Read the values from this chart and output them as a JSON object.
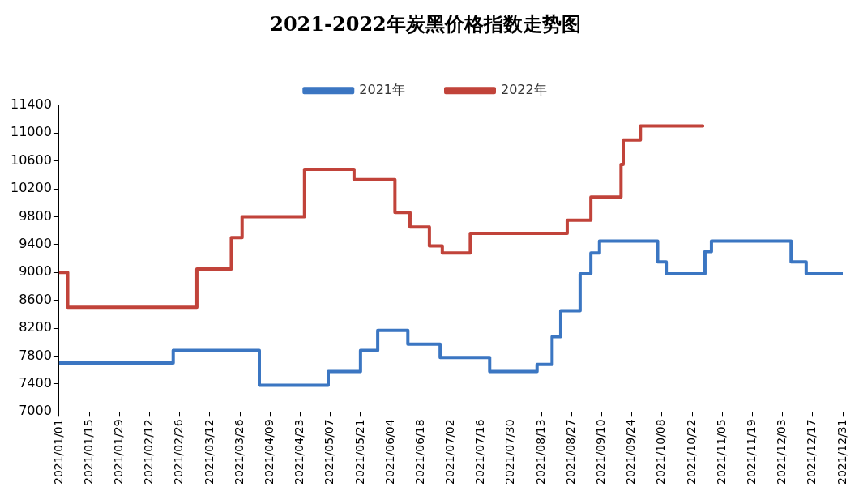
{
  "chart_data": {
    "type": "step",
    "title": "2021-2022年炭黑价格指数走势图",
    "legend": "top",
    "grid": false,
    "xlim": [
      "2021-01-01",
      "2021-12-31"
    ],
    "xticks": [
      {
        "value": "2021-01-01",
        "label": "2021/01/01"
      },
      {
        "value": "2021-01-15",
        "label": "2021/01/15"
      },
      {
        "value": "2021-01-29",
        "label": "2021/01/29"
      },
      {
        "value": "2021-02-12",
        "label": "2021/02/12"
      },
      {
        "value": "2021-02-26",
        "label": "2021/02/26"
      },
      {
        "value": "2021-03-12",
        "label": "2021/03/12"
      },
      {
        "value": "2021-03-26",
        "label": "2021/03/26"
      },
      {
        "value": "2021-04-09",
        "label": "2021/04/09"
      },
      {
        "value": "2021-04-23",
        "label": "2021/04/23"
      },
      {
        "value": "2021-05-07",
        "label": "2021/05/07"
      },
      {
        "value": "2021-05-21",
        "label": "2021/05/21"
      },
      {
        "value": "2021-06-04",
        "label": "2021/06/04"
      },
      {
        "value": "2021-06-18",
        "label": "2021/06/18"
      },
      {
        "value": "2021-07-02",
        "label": "2021/07/02"
      },
      {
        "value": "2021-07-16",
        "label": "2021/07/16"
      },
      {
        "value": "2021-07-30",
        "label": "2021/07/30"
      },
      {
        "value": "2021-08-13",
        "label": "2021/08/13"
      },
      {
        "value": "2021-08-27",
        "label": "2021/08/27"
      },
      {
        "value": "2021-09-10",
        "label": "2021/09/10"
      },
      {
        "value": "2021-09-24",
        "label": "2021/09/24"
      },
      {
        "value": "2021-10-08",
        "label": "2021/10/08"
      },
      {
        "value": "2021-10-22",
        "label": "2021/10/22"
      },
      {
        "value": "2021-11-05",
        "label": "2021/11/05"
      },
      {
        "value": "2021-11-19",
        "label": "2021/11/19"
      },
      {
        "value": "2021-12-03",
        "label": "2021/12/03"
      },
      {
        "value": "2021-12-17",
        "label": "2021/12/17"
      },
      {
        "value": "2021-12-31",
        "label": "2021/12/31"
      }
    ],
    "ylim": [
      7000,
      11400
    ],
    "yticks": [
      7000,
      7400,
      7800,
      8200,
      8600,
      9000,
      9400,
      9800,
      10200,
      10600,
      11000,
      11400
    ],
    "series": [
      {
        "name": "2021年",
        "color": "#3b76c2",
        "x": [
          "2021-01-01",
          "2021-02-23",
          "2021-04-04",
          "2021-05-06",
          "2021-05-21",
          "2021-05-29",
          "2021-06-12",
          "2021-06-27",
          "2021-07-20",
          "2021-08-11",
          "2021-08-18",
          "2021-08-22",
          "2021-08-31",
          "2021-09-05",
          "2021-09-09",
          "2021-10-06",
          "2021-10-10",
          "2021-10-28",
          "2021-10-31",
          "2021-12-07",
          "2021-12-14",
          "2021-12-31"
        ],
        "values": [
          7700,
          7880,
          7380,
          7580,
          7880,
          8170,
          7970,
          7780,
          7580,
          7680,
          8080,
          8450,
          8980,
          9280,
          9450,
          9150,
          8980,
          9300,
          9450,
          9150,
          8980,
          8980
        ]
      },
      {
        "name": "2022年",
        "color": "#c1433a",
        "x": [
          "2021-01-01",
          "2021-01-05",
          "2021-03-06",
          "2021-03-22",
          "2021-03-27",
          "2021-04-25",
          "2021-05-18",
          "2021-06-06",
          "2021-06-13",
          "2021-06-22",
          "2021-06-28",
          "2021-07-11",
          "2021-08-25",
          "2021-09-05",
          "2021-09-19",
          "2021-09-20",
          "2021-09-28",
          "2021-10-27"
        ],
        "values": [
          9000,
          8500,
          9050,
          9500,
          9800,
          10480,
          10330,
          9860,
          9650,
          9380,
          9280,
          9560,
          9750,
          10080,
          10550,
          10900,
          11100,
          11100
        ]
      }
    ]
  }
}
